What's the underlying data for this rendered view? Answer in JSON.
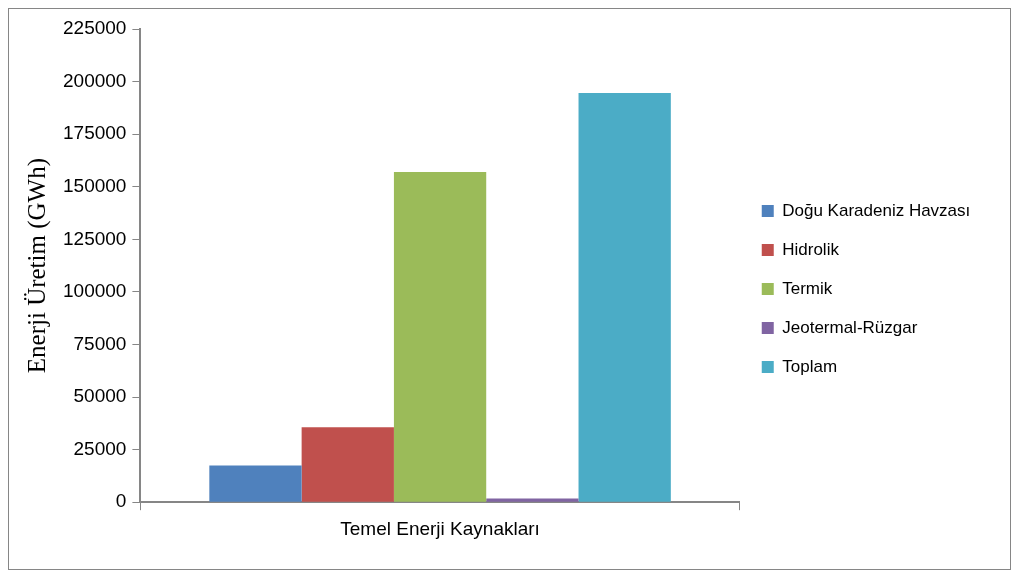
{
  "chart_data": {
    "type": "bar",
    "ylabel": "Enerji Üretim (GWh)",
    "categories": [
      "Temel Enerji Kaynakları"
    ],
    "series": [
      {
        "name": "Doğu Karadeniz Havzası",
        "color": "#4f81bd",
        "values": [
          17500
        ]
      },
      {
        "name": "Hidrolik",
        "color": "#c0504d",
        "values": [
          35600
        ]
      },
      {
        "name": "Termik",
        "color": "#9bbb59",
        "values": [
          157000
        ]
      },
      {
        "name": "Jeotermal-Rüzgar",
        "color": "#8064a2",
        "values": [
          1800
        ]
      },
      {
        "name": "Toplam",
        "color": "#4bacc6",
        "values": [
          194600
        ]
      }
    ],
    "ylim": [
      0,
      225000
    ],
    "yticks": [
      0,
      25000,
      50000,
      75000,
      100000,
      125000,
      150000,
      175000,
      200000,
      225000
    ],
    "grid": false,
    "legend": "right"
  }
}
